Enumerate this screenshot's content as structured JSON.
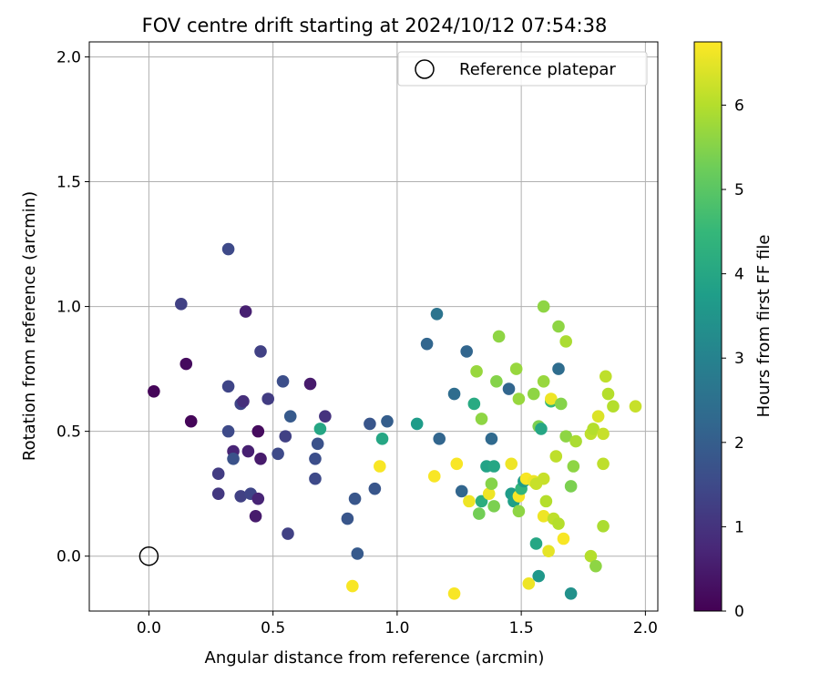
{
  "chart_data": {
    "type": "scatter",
    "title": "FOV centre drift starting at 2024/10/12 07:54:38",
    "xlabel": "Angular distance from reference (arcmin)",
    "ylabel": "Rotation from reference (arcmin)",
    "xlim": [
      -0.24,
      2.05
    ],
    "ylim": [
      -0.22,
      2.06
    ],
    "xticks": [
      "0.0",
      "0.5",
      "1.0",
      "1.5",
      "2.0"
    ],
    "yticks": [
      "0.0",
      "0.5",
      "1.0",
      "1.5",
      "2.0"
    ],
    "grid": true,
    "legend": {
      "placement": "top-right",
      "entries": [
        "Reference platepar"
      ]
    },
    "reference_point": {
      "x": 0.0,
      "y": 0.0
    },
    "colorbar": {
      "label": "Hours from first FF file",
      "colormap": "viridis",
      "range": [
        0,
        6.75
      ],
      "ticks": [
        "0",
        "1",
        "2",
        "3",
        "4",
        "5",
        "6"
      ]
    },
    "series": [
      {
        "points": [
          {
            "x": 0.02,
            "y": 0.66,
            "c": 0.1
          },
          {
            "x": 0.13,
            "y": 1.01,
            "c": 1.3
          },
          {
            "x": 0.15,
            "y": 0.77,
            "c": 0.2
          },
          {
            "x": 0.17,
            "y": 0.54,
            "c": 0.1
          },
          {
            "x": 0.28,
            "y": 0.33,
            "c": 1.2
          },
          {
            "x": 0.28,
            "y": 0.25,
            "c": 1.1
          },
          {
            "x": 0.32,
            "y": 1.23,
            "c": 1.5
          },
          {
            "x": 0.32,
            "y": 0.68,
            "c": 1.4
          },
          {
            "x": 0.32,
            "y": 0.5,
            "c": 1.5
          },
          {
            "x": 0.34,
            "y": 0.42,
            "c": 0.7
          },
          {
            "x": 0.34,
            "y": 0.39,
            "c": 1.7
          },
          {
            "x": 0.37,
            "y": 0.24,
            "c": 1.3
          },
          {
            "x": 0.37,
            "y": 0.61,
            "c": 1.4
          },
          {
            "x": 0.38,
            "y": 0.62,
            "c": 0.9
          },
          {
            "x": 0.39,
            "y": 0.98,
            "c": 0.6
          },
          {
            "x": 0.4,
            "y": 0.42,
            "c": 0.6
          },
          {
            "x": 0.41,
            "y": 0.25,
            "c": 1.4
          },
          {
            "x": 0.43,
            "y": 0.16,
            "c": 0.5
          },
          {
            "x": 0.44,
            "y": 0.5,
            "c": 0.2
          },
          {
            "x": 0.44,
            "y": 0.23,
            "c": 0.7
          },
          {
            "x": 0.45,
            "y": 0.82,
            "c": 1.3
          },
          {
            "x": 0.45,
            "y": 0.39,
            "c": 0.5
          },
          {
            "x": 0.48,
            "y": 0.63,
            "c": 1.2
          },
          {
            "x": 0.52,
            "y": 0.41,
            "c": 1.5
          },
          {
            "x": 0.54,
            "y": 0.7,
            "c": 1.6
          },
          {
            "x": 0.55,
            "y": 0.48,
            "c": 1.3
          },
          {
            "x": 0.56,
            "y": 0.09,
            "c": 1.3
          },
          {
            "x": 0.57,
            "y": 0.56,
            "c": 1.9
          },
          {
            "x": 0.65,
            "y": 0.69,
            "c": 0.5
          },
          {
            "x": 0.67,
            "y": 0.31,
            "c": 1.5
          },
          {
            "x": 0.67,
            "y": 0.39,
            "c": 1.6
          },
          {
            "x": 0.68,
            "y": 0.45,
            "c": 1.7
          },
          {
            "x": 0.69,
            "y": 0.51,
            "c": 4.0
          },
          {
            "x": 0.71,
            "y": 0.56,
            "c": 1.0
          },
          {
            "x": 0.8,
            "y": 0.15,
            "c": 1.8
          },
          {
            "x": 0.82,
            "y": -0.12,
            "c": 6.7
          },
          {
            "x": 0.83,
            "y": 0.23,
            "c": 1.8
          },
          {
            "x": 0.84,
            "y": 0.01,
            "c": 1.9
          },
          {
            "x": 0.89,
            "y": 0.53,
            "c": 1.8
          },
          {
            "x": 0.91,
            "y": 0.27,
            "c": 1.8
          },
          {
            "x": 0.93,
            "y": 0.36,
            "c": 6.7
          },
          {
            "x": 0.94,
            "y": 0.47,
            "c": 4.0
          },
          {
            "x": 0.96,
            "y": 0.54,
            "c": 2.0
          },
          {
            "x": 1.08,
            "y": 0.53,
            "c": 3.7
          },
          {
            "x": 1.12,
            "y": 0.85,
            "c": 2.2
          },
          {
            "x": 1.15,
            "y": 0.32,
            "c": 6.7
          },
          {
            "x": 1.16,
            "y": 0.97,
            "c": 2.6
          },
          {
            "x": 1.17,
            "y": 0.47,
            "c": 2.2
          },
          {
            "x": 1.23,
            "y": 0.65,
            "c": 2.4
          },
          {
            "x": 1.23,
            "y": -0.15,
            "c": 6.7
          },
          {
            "x": 1.24,
            "y": 0.37,
            "c": 6.7
          },
          {
            "x": 1.26,
            "y": 0.26,
            "c": 2.2
          },
          {
            "x": 1.28,
            "y": 0.82,
            "c": 2.2
          },
          {
            "x": 1.29,
            "y": 0.22,
            "c": 6.6
          },
          {
            "x": 1.31,
            "y": 0.61,
            "c": 4.1
          },
          {
            "x": 1.32,
            "y": 0.74,
            "c": 5.7
          },
          {
            "x": 1.33,
            "y": 0.17,
            "c": 5.3
          },
          {
            "x": 1.34,
            "y": 0.55,
            "c": 5.6
          },
          {
            "x": 1.34,
            "y": 0.22,
            "c": 4.2
          },
          {
            "x": 1.36,
            "y": 0.36,
            "c": 3.9
          },
          {
            "x": 1.37,
            "y": 0.25,
            "c": 6.6
          },
          {
            "x": 1.38,
            "y": 0.47,
            "c": 2.3
          },
          {
            "x": 1.39,
            "y": 0.36,
            "c": 4.0
          },
          {
            "x": 1.39,
            "y": 0.2,
            "c": 5.4
          },
          {
            "x": 1.38,
            "y": 0.29,
            "c": 5.5
          },
          {
            "x": 1.4,
            "y": 0.7,
            "c": 5.5
          },
          {
            "x": 1.41,
            "y": 0.88,
            "c": 5.6
          },
          {
            "x": 1.45,
            "y": 0.67,
            "c": 2.2
          },
          {
            "x": 1.46,
            "y": 0.37,
            "c": 6.6
          },
          {
            "x": 1.46,
            "y": 0.25,
            "c": 3.7
          },
          {
            "x": 1.47,
            "y": 0.22,
            "c": 3.8
          },
          {
            "x": 1.48,
            "y": 0.75,
            "c": 5.7
          },
          {
            "x": 1.49,
            "y": 0.63,
            "c": 5.7
          },
          {
            "x": 1.49,
            "y": 0.24,
            "c": 6.7
          },
          {
            "x": 1.49,
            "y": 0.18,
            "c": 5.6
          },
          {
            "x": 1.5,
            "y": 0.27,
            "c": 4.4
          },
          {
            "x": 1.51,
            "y": 0.3,
            "c": 3.7
          },
          {
            "x": 1.52,
            "y": 0.31,
            "c": 6.7
          },
          {
            "x": 1.53,
            "y": -0.11,
            "c": 6.6
          },
          {
            "x": 1.55,
            "y": 0.65,
            "c": 5.6
          },
          {
            "x": 1.55,
            "y": 0.3,
            "c": 6.6
          },
          {
            "x": 1.56,
            "y": 0.05,
            "c": 4.0
          },
          {
            "x": 1.56,
            "y": 0.29,
            "c": 6.2
          },
          {
            "x": 1.57,
            "y": -0.08,
            "c": 3.6
          },
          {
            "x": 1.57,
            "y": 0.52,
            "c": 5.4
          },
          {
            "x": 1.58,
            "y": 0.51,
            "c": 4.0
          },
          {
            "x": 1.59,
            "y": 0.31,
            "c": 6.2
          },
          {
            "x": 1.59,
            "y": 1.0,
            "c": 5.6
          },
          {
            "x": 1.59,
            "y": 0.7,
            "c": 5.7
          },
          {
            "x": 1.59,
            "y": 0.16,
            "c": 6.6
          },
          {
            "x": 1.6,
            "y": 0.22,
            "c": 6.0
          },
          {
            "x": 1.61,
            "y": 0.02,
            "c": 6.5
          },
          {
            "x": 1.62,
            "y": 0.62,
            "c": 4.5
          },
          {
            "x": 1.62,
            "y": 0.63,
            "c": 6.6
          },
          {
            "x": 1.63,
            "y": 0.15,
            "c": 6.1
          },
          {
            "x": 1.64,
            "y": 0.4,
            "c": 6.1
          },
          {
            "x": 1.65,
            "y": 0.75,
            "c": 2.4
          },
          {
            "x": 1.65,
            "y": 0.92,
            "c": 5.6
          },
          {
            "x": 1.65,
            "y": 0.13,
            "c": 6.0
          },
          {
            "x": 1.66,
            "y": 0.61,
            "c": 5.5
          },
          {
            "x": 1.67,
            "y": 0.07,
            "c": 6.7
          },
          {
            "x": 1.68,
            "y": 0.48,
            "c": 5.6
          },
          {
            "x": 1.68,
            "y": 0.86,
            "c": 5.9
          },
          {
            "x": 1.7,
            "y": 0.28,
            "c": 5.4
          },
          {
            "x": 1.7,
            "y": -0.15,
            "c": 3.4
          },
          {
            "x": 1.71,
            "y": 0.36,
            "c": 5.6
          },
          {
            "x": 1.72,
            "y": 0.46,
            "c": 5.9
          },
          {
            "x": 1.78,
            "y": 0.0,
            "c": 6.0
          },
          {
            "x": 1.78,
            "y": 0.49,
            "c": 6.1
          },
          {
            "x": 1.79,
            "y": 0.51,
            "c": 6.0
          },
          {
            "x": 1.8,
            "y": -0.04,
            "c": 5.6
          },
          {
            "x": 1.81,
            "y": 0.56,
            "c": 6.4
          },
          {
            "x": 1.83,
            "y": 0.49,
            "c": 6.2
          },
          {
            "x": 1.83,
            "y": 0.37,
            "c": 6.1
          },
          {
            "x": 1.83,
            "y": 0.12,
            "c": 5.9
          },
          {
            "x": 1.84,
            "y": 0.72,
            "c": 6.1
          },
          {
            "x": 1.85,
            "y": 0.65,
            "c": 6.0
          },
          {
            "x": 1.87,
            "y": 0.6,
            "c": 6.0
          },
          {
            "x": 1.96,
            "y": 0.6,
            "c": 6.2
          }
        ]
      }
    ]
  }
}
